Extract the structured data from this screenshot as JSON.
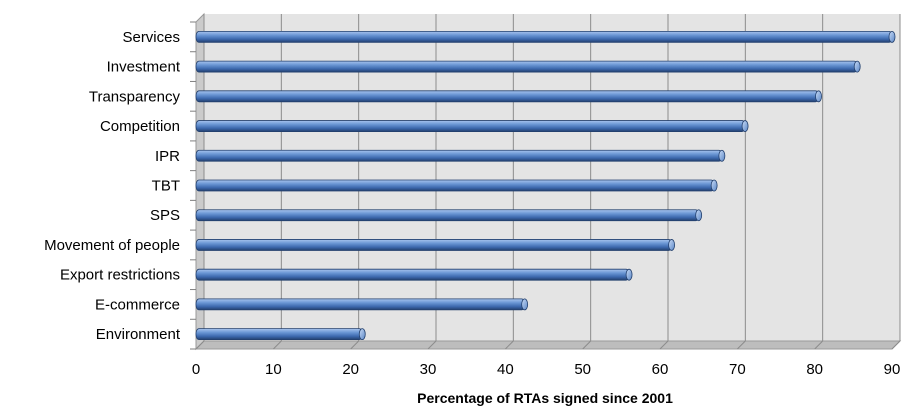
{
  "chart_data": {
    "type": "bar",
    "orientation": "horizontal",
    "style": "3d-cylinder",
    "categories": [
      "Services",
      "Investment",
      "Transparency",
      "Competition",
      "IPR",
      "TBT",
      "SPS",
      "Movement of people",
      "Export restrictions",
      "E-commerce",
      "Environment"
    ],
    "values": [
      90,
      85.5,
      80.5,
      71,
      68,
      67,
      65,
      61.5,
      56,
      42.5,
      21.5
    ],
    "title": "",
    "xlabel": "Percentage of RTAs signed since 2001",
    "ylabel": "",
    "xlim": [
      0,
      90
    ],
    "xticks": [
      "0",
      "10",
      "20",
      "30",
      "40",
      "50",
      "60",
      "70",
      "80",
      "90"
    ],
    "grid": true,
    "legend": "none",
    "colors": {
      "bar_light": "#a8c4ee",
      "bar_mid": "#4f81bd",
      "bar_dark": "#23406e",
      "plot_back": "#e4e4e4",
      "plot_side": "#cbcbcb",
      "grid": "#8c8c8c"
    }
  }
}
